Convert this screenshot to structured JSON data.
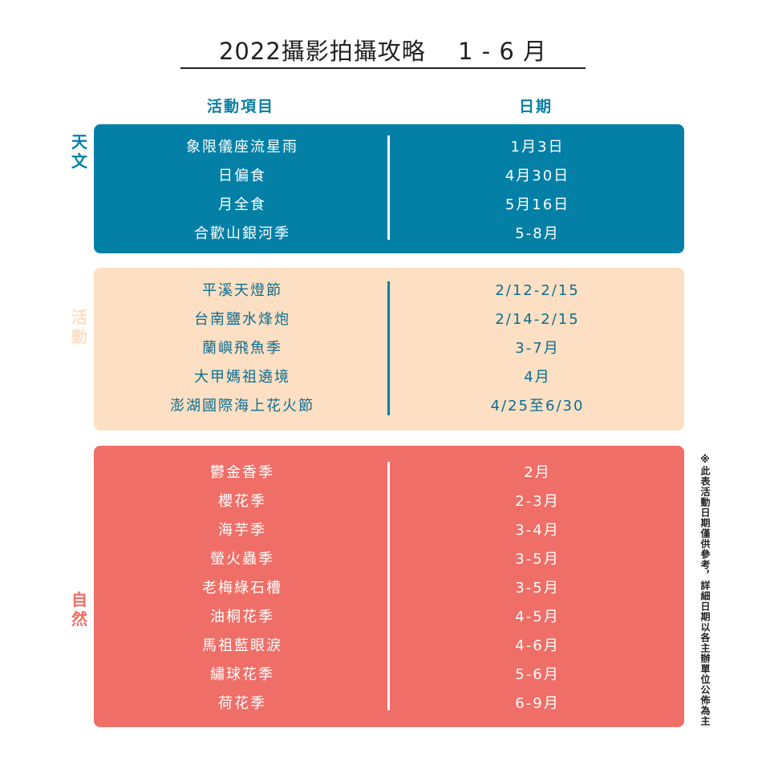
{
  "title": "2022攝影拍攝攻略　 1 - 6 月",
  "headers": {
    "activity": "活動項目",
    "date": "日期"
  },
  "colors": {
    "astronomy": "#0480a7",
    "events": "#fddfc3",
    "nature": "#ef6e67",
    "accent": "#0a7ea3"
  },
  "sections": {
    "astronomy": {
      "label": "天文",
      "rows": [
        {
          "name": "象限儀座流星雨",
          "date": "1月3日"
        },
        {
          "name": "日偏食",
          "date": "4月30日"
        },
        {
          "name": "月全食",
          "date": "5月16日"
        },
        {
          "name": "合歡山銀河季",
          "date": "5-8月"
        }
      ]
    },
    "events": {
      "label": "活動",
      "rows": [
        {
          "name": "平溪天燈節",
          "date": "2/12-2/15"
        },
        {
          "name": "台南鹽水烽炮",
          "date": "2/14-2/15"
        },
        {
          "name": "蘭嶼飛魚季",
          "date": "3-7月"
        },
        {
          "name": "大甲媽祖遶境",
          "date": "4月"
        },
        {
          "name": "澎湖國際海上花火節",
          "date": "4/25至6/30"
        }
      ]
    },
    "nature": {
      "label": "自然",
      "rows": [
        {
          "name": "鬱金香季",
          "date": "2月"
        },
        {
          "name": "櫻花季",
          "date": "2-3月"
        },
        {
          "name": "海芋季",
          "date": "3-4月"
        },
        {
          "name": "螢火蟲季",
          "date": "3-5月"
        },
        {
          "name": "老梅綠石槽",
          "date": "3-5月"
        },
        {
          "name": "油桐花季",
          "date": "4-5月"
        },
        {
          "name": "馬祖藍眼淚",
          "date": "4-6月"
        },
        {
          "name": "繡球花季",
          "date": "5-6月"
        },
        {
          "name": "荷花季",
          "date": "6-9月"
        }
      ]
    }
  },
  "note": "※此表活動日期僅供參考，詳細日期以各主辦單位公佈為主"
}
